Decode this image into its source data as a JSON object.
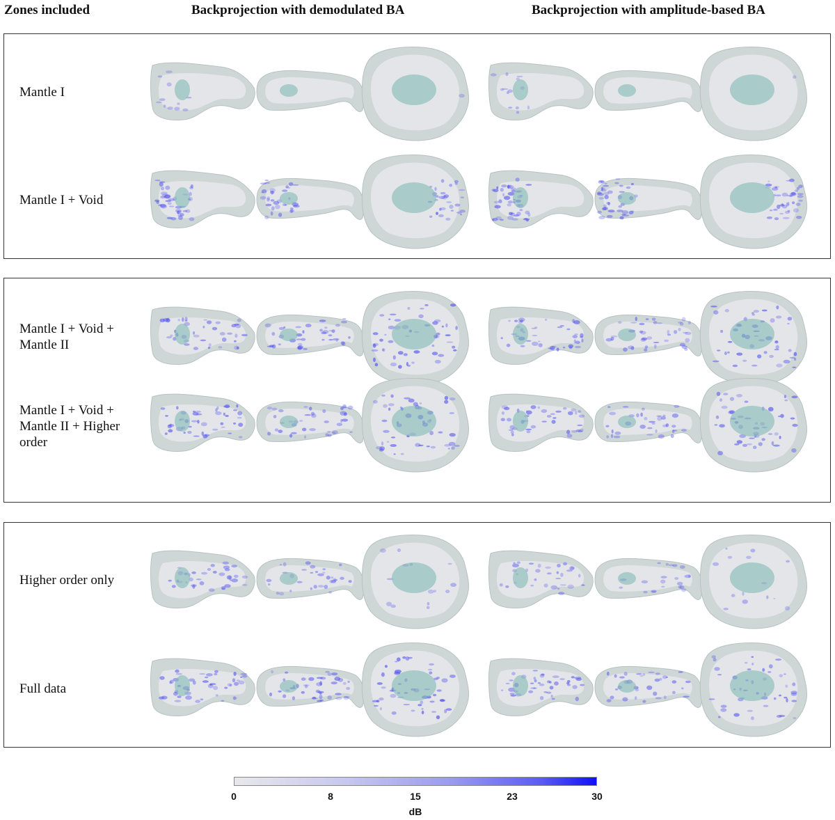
{
  "header": {
    "zones": "Zones included",
    "col1": "Backprojection with demodulated BA",
    "col2": "Backprojection with amplitude-based BA"
  },
  "rows": [
    [
      "Mantle I"
    ],
    [
      "Mantle I + Void"
    ],
    [
      "Mantle I + Void +",
      "Mantle II"
    ],
    [
      "Mantle I + Void +",
      "Mantle II + Higher",
      "order"
    ],
    [
      "Higher order only"
    ],
    [
      "Full data"
    ]
  ],
  "row_intensity": [
    [
      0.15,
      0.0,
      0.02,
      0.18,
      0.0,
      0.02
    ],
    [
      0.55,
      0.5,
      0.45,
      0.65,
      0.6,
      0.55
    ],
    [
      0.6,
      0.55,
      0.75,
      0.6,
      0.55,
      0.7
    ],
    [
      0.65,
      0.55,
      0.75,
      0.6,
      0.5,
      0.7
    ],
    [
      0.5,
      0.45,
      0.2,
      0.45,
      0.3,
      0.2
    ],
    [
      0.65,
      0.6,
      0.75,
      0.6,
      0.5,
      0.65
    ]
  ],
  "colorbar": {
    "ticks": [
      "0",
      "8",
      "15",
      "23",
      "30"
    ],
    "tick_values": [
      0,
      8,
      15,
      23,
      30
    ],
    "min": 0,
    "max": 30,
    "label": "dB",
    "low_color": "#e8e8ec",
    "high_color": "#1010f8"
  }
}
